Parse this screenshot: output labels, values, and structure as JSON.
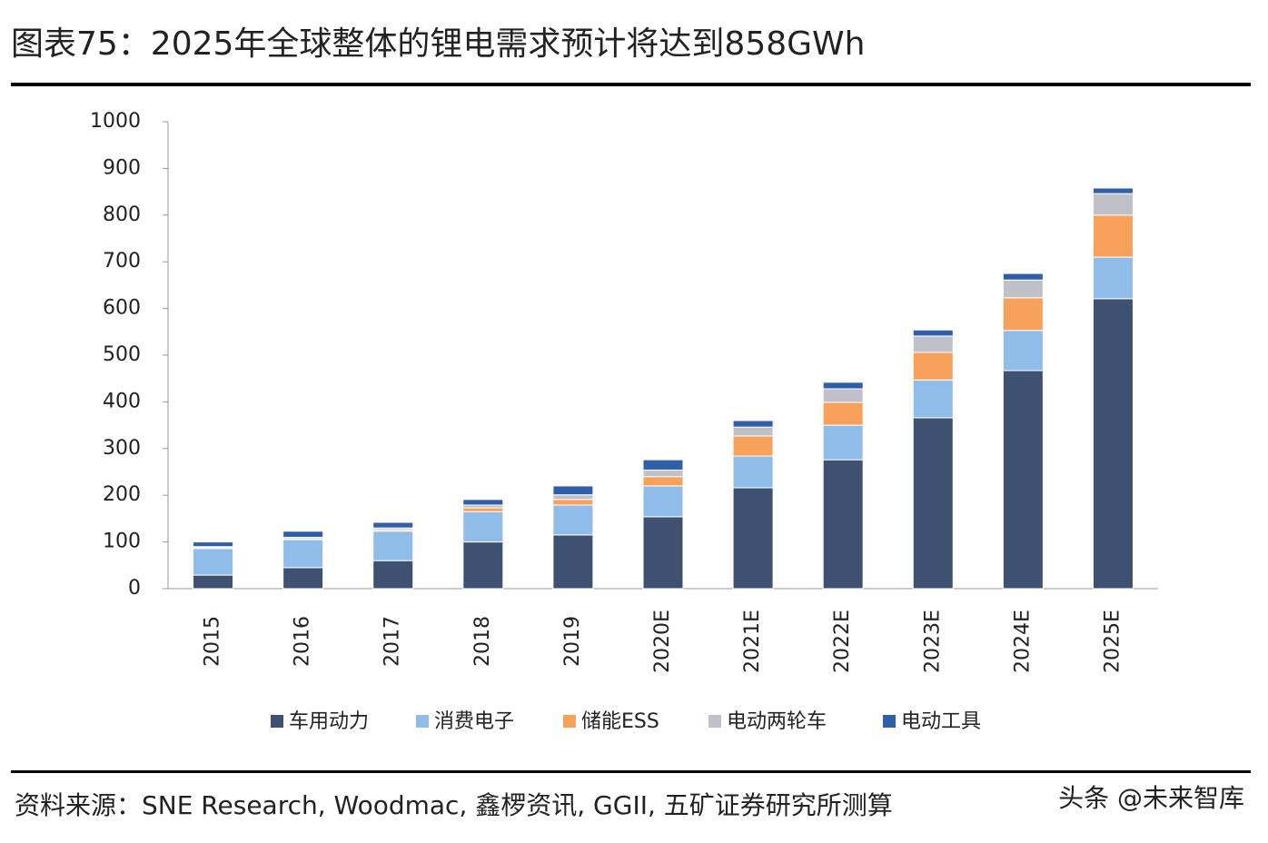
{
  "chart_data": {
    "type": "stacked_bar",
    "title": "图表75：2025年全球整体的锂电需求预计将达到858GWh",
    "source": "资料来源：SNE Research, Woodmac, 鑫椤资讯, GGII, 五矿证券研究所测算",
    "watermark": "头条 @未来智库",
    "categories": [
      "2015",
      "2016",
      "2017",
      "2018",
      "2019",
      "2020E",
      "2021E",
      "2022E",
      "2023E",
      "2024E",
      "2025E"
    ],
    "series": [
      {
        "name": "车用动力",
        "color": "#3f5170",
        "values": [
          29,
          45,
          60,
          100,
          115,
          154,
          216,
          276,
          366,
          467,
          621
        ]
      },
      {
        "name": "消费电子",
        "color": "#8fbce8",
        "values": [
          57,
          60,
          63,
          65,
          64,
          66,
          68,
          74,
          81,
          86,
          89
        ]
      },
      {
        "name": "储能ESS",
        "color": "#f8a15a",
        "values": [
          2,
          2,
          3,
          8,
          12,
          20,
          43,
          49,
          59,
          70,
          90
        ]
      },
      {
        "name": "电动两轮车",
        "color": "#c0c0c8",
        "values": [
          2,
          3,
          4,
          6,
          10,
          14,
          19,
          29,
          35,
          38,
          46
        ]
      },
      {
        "name": "电动工具",
        "color": "#2f5fa8",
        "values": [
          10,
          13,
          12,
          12,
          19,
          22,
          14,
          14,
          13,
          14,
          12
        ]
      }
    ],
    "ylim": [
      0,
      1000
    ],
    "yticks": [
      0,
      100,
      200,
      300,
      400,
      500,
      600,
      700,
      800,
      900,
      1000
    ],
    "grid": false
  }
}
